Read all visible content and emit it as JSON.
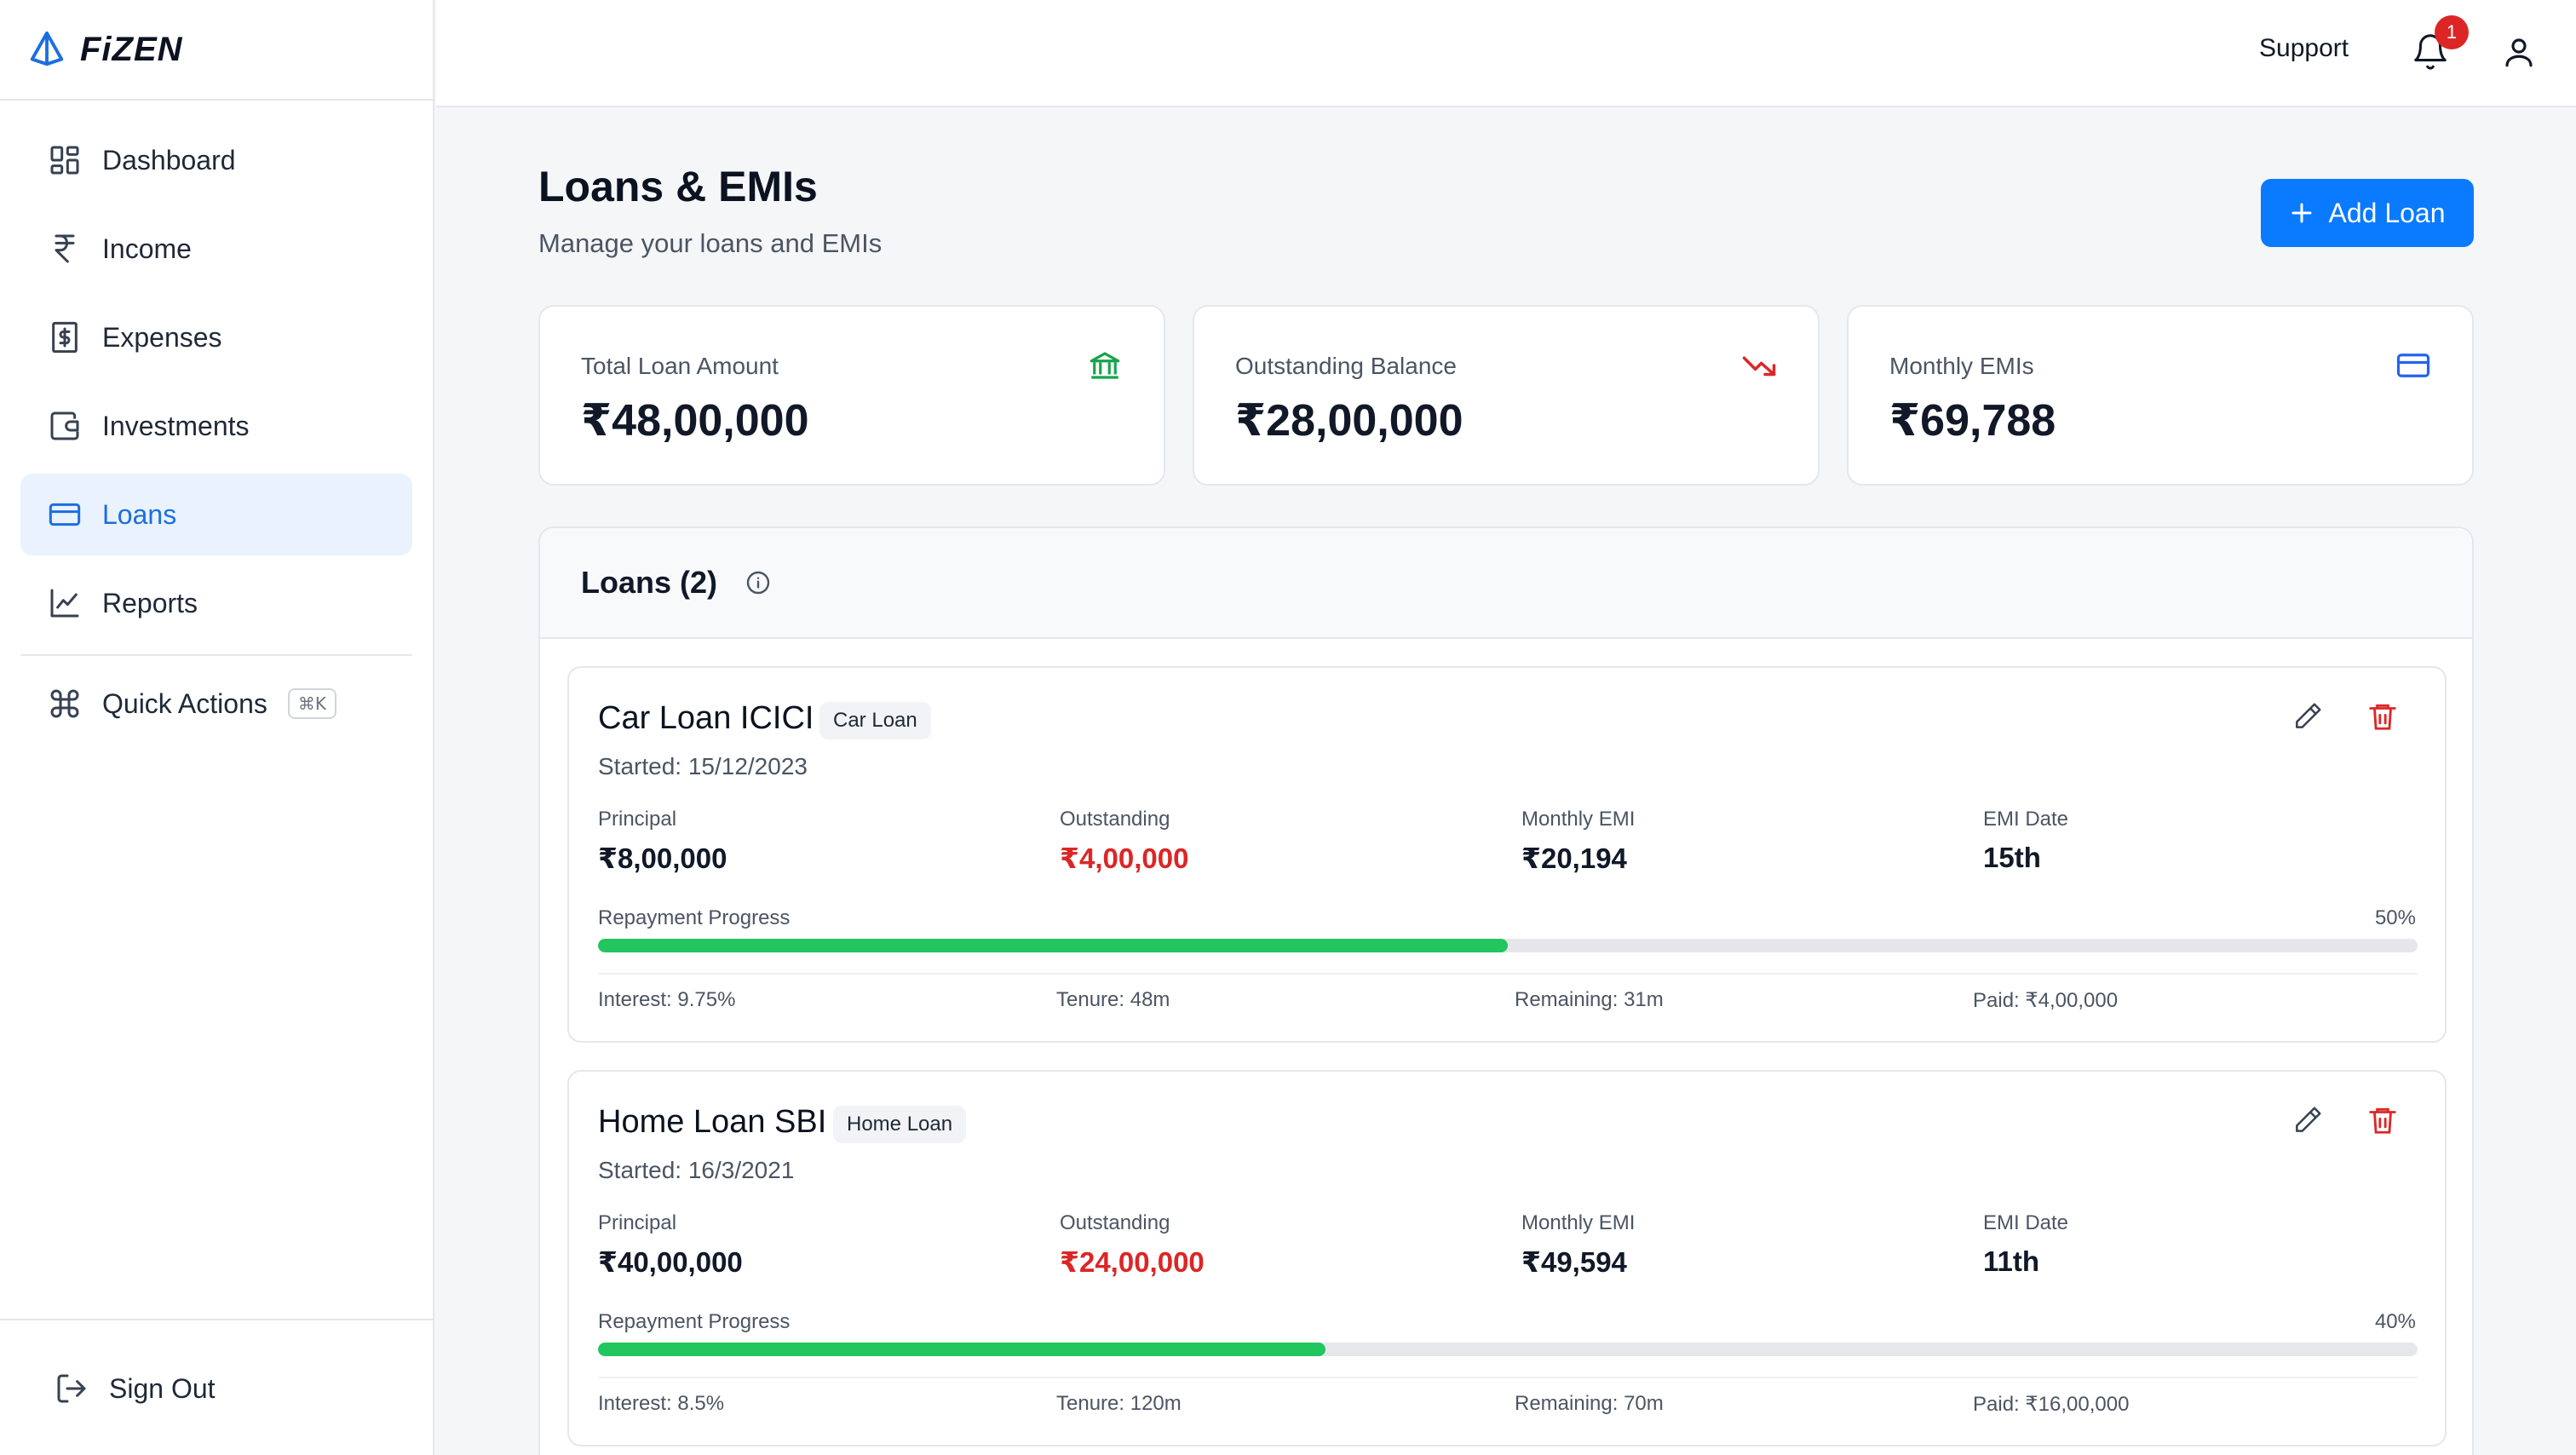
{
  "brand": {
    "name": "FiZEN"
  },
  "sidebar": {
    "items": [
      {
        "label": "Dashboard"
      },
      {
        "label": "Income"
      },
      {
        "label": "Expenses"
      },
      {
        "label": "Investments"
      },
      {
        "label": "Loans"
      },
      {
        "label": "Reports"
      }
    ],
    "quick_actions": {
      "label": "Quick Actions",
      "shortcut": "⌘K"
    },
    "sign_out": "Sign Out"
  },
  "topbar": {
    "support": "Support",
    "notifications_count": "1"
  },
  "page": {
    "title": "Loans & EMIs",
    "subtitle": "Manage your loans and EMIs",
    "add_button": "Add Loan"
  },
  "stats": [
    {
      "label": "Total Loan Amount",
      "value": "₹48,00,000",
      "icon": "bank-icon",
      "color": "#16a34a"
    },
    {
      "label": "Outstanding Balance",
      "value": "₹28,00,000",
      "icon": "trend-down-icon",
      "color": "#dc2626"
    },
    {
      "label": "Monthly EMIs",
      "value": "₹69,788",
      "icon": "credit-card-icon",
      "color": "#2563eb"
    }
  ],
  "loans_panel": {
    "title": "Loans (2)",
    "labels": {
      "principal": "Principal",
      "outstanding": "Outstanding",
      "monthly_emi": "Monthly EMI",
      "emi_date": "EMI Date",
      "progress": "Repayment Progress"
    },
    "loans": [
      {
        "name": "Car Loan ICICI",
        "type": "Car Loan",
        "started": "Started: 15/12/2023",
        "principal": "₹8,00,000",
        "outstanding": "₹4,00,000",
        "monthly_emi": "₹20,194",
        "emi_date": "15th",
        "progress_pct": "50%",
        "progress": 0.5,
        "interest": "Interest: 9.75%",
        "tenure": "Tenure: 48m",
        "remaining": "Remaining: 31m",
        "paid": "Paid: ₹4,00,000"
      },
      {
        "name": "Home Loan SBI",
        "type": "Home Loan",
        "started": "Started: 16/3/2021",
        "principal": "₹40,00,000",
        "outstanding": "₹24,00,000",
        "monthly_emi": "₹49,594",
        "emi_date": "11th",
        "progress_pct": "40%",
        "progress": 0.4,
        "interest": "Interest: 8.5%",
        "tenure": "Tenure: 120m",
        "remaining": "Remaining: 70m",
        "paid": "Paid: ₹16,00,000"
      }
    ]
  },
  "colors": {
    "accent": "#0a7aff",
    "progress": "#22c55e",
    "danger": "#dc2626",
    "active_bg": "#eaf2fd"
  }
}
